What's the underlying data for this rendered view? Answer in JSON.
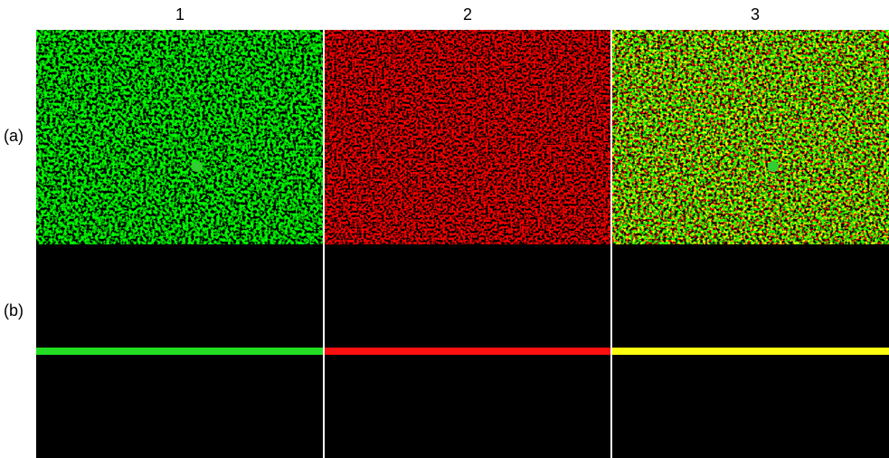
{
  "columns": [
    "1",
    "2",
    "3"
  ],
  "rows": [
    "(a)",
    "(b)"
  ]
}
